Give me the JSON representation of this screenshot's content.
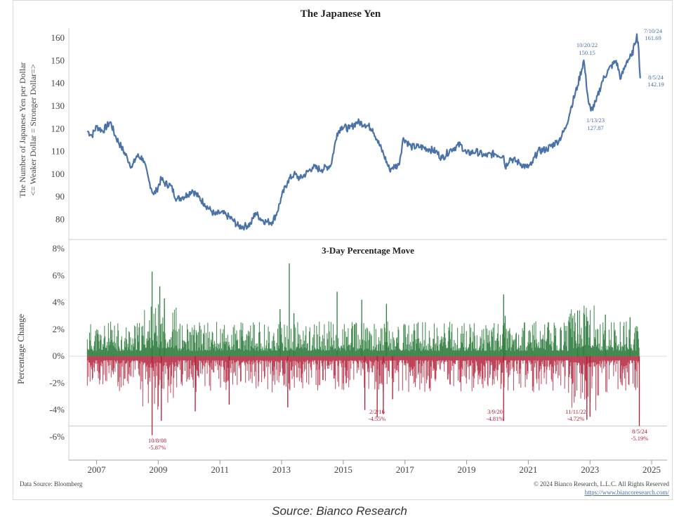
{
  "chart_data": [
    {
      "type": "line",
      "title": "The Japanese Yen",
      "ylabel": "The Number of Japanese Yen per Dollar",
      "ylabel2": "<= Weaker Dollar = Stronger Dollar=>",
      "ylim": [
        72,
        165
      ],
      "yticks": [
        "80",
        "90",
        "100",
        "110",
        "120",
        "130",
        "140",
        "150",
        "160"
      ],
      "color": "#4a72a8",
      "series": [
        {
          "x": [
            2006.7,
            2006.85,
            2007.0,
            2007.2,
            2007.45,
            2007.6,
            2007.8,
            2008.0,
            2008.15,
            2008.3,
            2008.5,
            2008.7,
            2008.85,
            2008.95,
            2009.1,
            2009.2,
            2009.4,
            2009.6,
            2009.8,
            2009.95,
            2010.1,
            2010.3,
            2010.5,
            2010.7,
            2010.85,
            2011.0,
            2011.2,
            2011.4,
            2011.6,
            2011.8,
            2012.0,
            2012.15,
            2012.35,
            2012.5,
            2012.7,
            2012.85,
            2013.0,
            2013.2,
            2013.4,
            2013.6,
            2013.85,
            2014.0,
            2014.3,
            2014.6,
            2014.8,
            2014.95,
            2015.2,
            2015.45,
            2015.7,
            2015.95,
            2016.1,
            2016.3,
            2016.5,
            2016.6,
            2016.8,
            2016.95,
            2017.2,
            2017.5,
            2017.8,
            2018.0,
            2018.2,
            2018.5,
            2018.8,
            2019.0,
            2019.3,
            2019.6,
            2019.9,
            2020.2,
            2020.25,
            2020.4,
            2020.7,
            2020.95,
            2021.1,
            2021.3,
            2021.6,
            2021.9,
            2022.0,
            2022.2,
            2022.4,
            2022.6,
            2022.8,
            2022.95,
            2023.03,
            2023.2,
            2023.4,
            2023.6,
            2023.85,
            2024.0,
            2024.2,
            2024.35,
            2024.45,
            2024.52,
            2024.58,
            2024.63
          ],
          "values": [
            119,
            117,
            121,
            119,
            123,
            117,
            112,
            107,
            103,
            108,
            107,
            97,
            91,
            93,
            98,
            96,
            95,
            89,
            90,
            91,
            93,
            90,
            87,
            84,
            82,
            83,
            82,
            80,
            77,
            77,
            78,
            83,
            80,
            79,
            79,
            83,
            90,
            97,
            100,
            98,
            101,
            103,
            102,
            104,
            118,
            121,
            120,
            123,
            122,
            120,
            115,
            109,
            102,
            103,
            104,
            116,
            112,
            112,
            111,
            110,
            107,
            111,
            113,
            109,
            110,
            108,
            109,
            108,
            103,
            107,
            105,
            103,
            104,
            110,
            111,
            114,
            115,
            120,
            130,
            139,
            150.15,
            132,
            127.87,
            132,
            141,
            146,
            150,
            142,
            150,
            152,
            157,
            161.69,
            155,
            142.19
          ]
        }
      ],
      "annotations": [
        "10/20/22",
        "150.15",
        "7/10/24",
        "161.69",
        "8/5/24",
        "142.19",
        "1/13/23",
        "127.87"
      ]
    },
    {
      "type": "bar",
      "title": "3-Day Percentage Move",
      "ylabel": "Percentage Change",
      "ylim": [
        -8,
        8
      ],
      "yticks": [
        "-6%",
        "-4%",
        "-2%",
        "0%",
        "2%",
        "4%",
        "6%",
        "8%"
      ],
      "positive_color": "#2e7d3e",
      "negative_color": "#b01c35",
      "xlabels": [
        "2007",
        "2009",
        "2011",
        "2013",
        "2015",
        "2017",
        "2019",
        "2021",
        "2023",
        "2025"
      ],
      "xlim": [
        2006.1,
        2025.5
      ],
      "x_start": 2006.7,
      "x_end": 2024.6,
      "series": [
        {
          "x": [
            2008.8,
            2009.05,
            2009.2,
            2012.95,
            2013.25,
            2013.4,
            2014.8,
            2015.6,
            2016.4,
            2020.2,
            2020.25,
            2022.6,
            2022.8,
            2023.5,
            2024.3
          ],
          "values": [
            6.3,
            5.2,
            4.3,
            3.5,
            6.9,
            3.2,
            4.8,
            4.2,
            3.9,
            4.6,
            3.0,
            3.4,
            3.2,
            3.1,
            2.9
          ]
        },
        {
          "x": [
            2008.8,
            2009.1,
            2010.2,
            2011.3,
            2013.2,
            2015.7,
            2016.1,
            2016.3,
            2016.6,
            2020.2,
            2022.9,
            2023.0,
            2024.6
          ],
          "values": [
            -5.87,
            -4.8,
            -4.1,
            -3.6,
            -3.8,
            -4.0,
            -4.55,
            -4.3,
            -3.2,
            -4.81,
            -4.72,
            -4.5,
            -5.19
          ]
        }
      ],
      "annotations": [
        "10/8/08",
        "-5.87%",
        "2/2/16",
        "-4.55%",
        "3/9/20",
        "-4.81%",
        "11/11/22",
        "-4.72%",
        "8/5/24",
        "-5.19%"
      ]
    }
  ],
  "footer": {
    "source_left": "Data Source: Bloomberg",
    "copyright": "© 2024 Bianco Research, L.L.C. All Rights Reserved",
    "url": "https://www.biancoresearch.com/"
  },
  "caption": "Source: Bianco Research"
}
